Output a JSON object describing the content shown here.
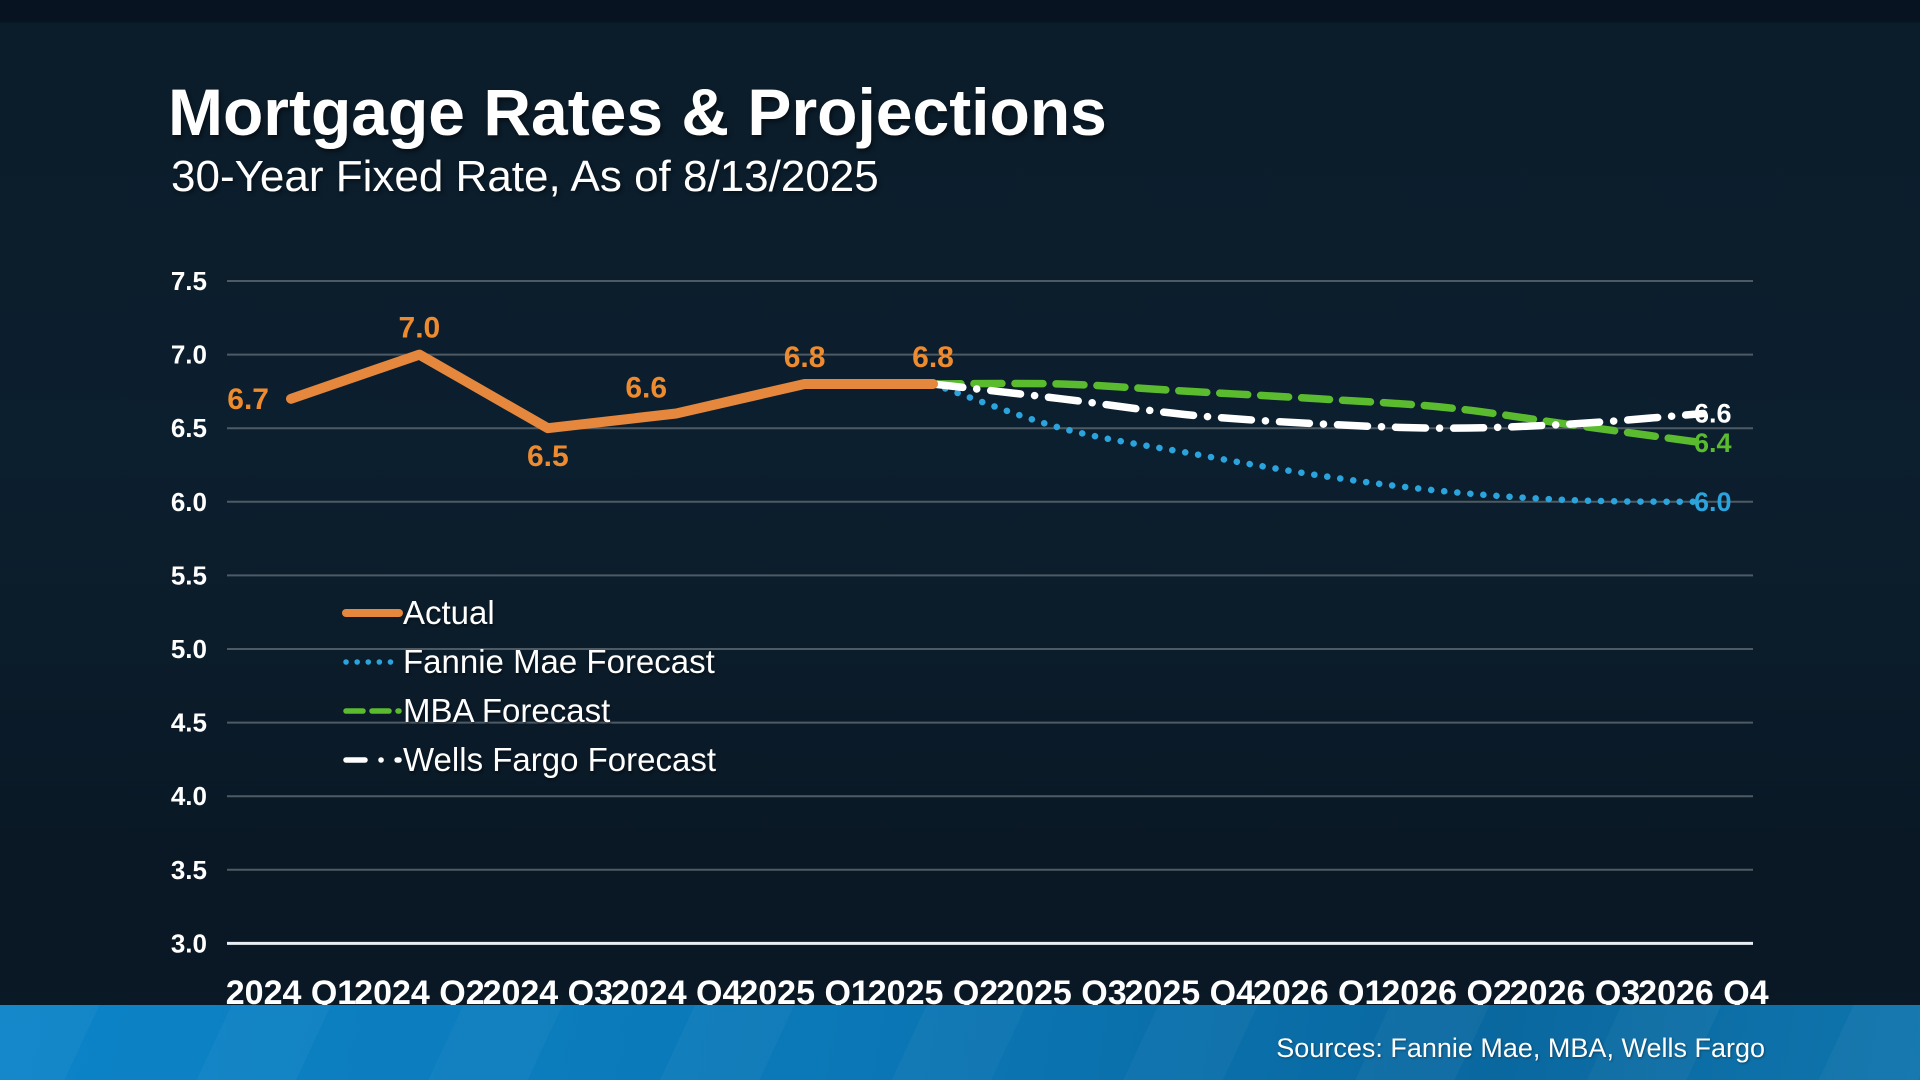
{
  "header": {
    "title": "Mortgage Rates & Projections",
    "subtitle": "30-Year Fixed Rate, As of 8/13/2025"
  },
  "footer": {
    "sources": "Sources: Fannie Mae, MBA, Wells Fargo",
    "bar_color_left": "#0C84C8",
    "bar_color_right": "#0A689F"
  },
  "colors": {
    "background": "#0B1C2A",
    "grid": "#4E5A64",
    "axis": "#E9EEF2",
    "text": "#FFFFFF"
  },
  "chart_data": {
    "type": "line",
    "title": "Mortgage Rates & Projections",
    "subtitle": "30-Year Fixed Rate, As of 8/13/2025",
    "categories": [
      "2024 Q1",
      "2024 Q2",
      "2024 Q3",
      "2024 Q4",
      "2025 Q1",
      "2025 Q2",
      "2025 Q3",
      "2025 Q4",
      "2026 Q1",
      "2026 Q2",
      "2026 Q3",
      "2026 Q4"
    ],
    "ylim": [
      3.0,
      7.5
    ],
    "ytick_step": 0.5,
    "grid": true,
    "legend_position": "middle-left",
    "series": [
      {
        "name": "Actual",
        "type": "solid",
        "color": "#E5873C",
        "label_color": "#EE8B2F",
        "values": [
          6.7,
          7.0,
          6.5,
          6.6,
          6.8,
          6.8,
          null,
          null,
          null,
          null,
          null,
          null
        ],
        "point_labels": [
          {
            "text": "6.7",
            "pos": "left"
          },
          {
            "text": "7.0",
            "pos": "above"
          },
          {
            "text": "6.5",
            "pos": "below"
          },
          {
            "text": "6.6",
            "pos": "above-left"
          },
          {
            "text": "6.8",
            "pos": "above"
          },
          {
            "text": "6.8",
            "pos": "above"
          }
        ]
      },
      {
        "name": "Fannie Mae Forecast",
        "type": "dotted",
        "color": "#2BA3DC",
        "values": [
          null,
          null,
          null,
          null,
          null,
          6.8,
          6.5,
          6.33,
          6.18,
          6.07,
          6.01,
          6.0
        ],
        "end_label": "6.0"
      },
      {
        "name": "MBA Forecast",
        "type": "dashed",
        "color": "#5ABB2F",
        "values": [
          null,
          null,
          null,
          null,
          null,
          6.8,
          6.8,
          6.75,
          6.7,
          6.64,
          6.52,
          6.4
        ],
        "end_label": "6.4"
      },
      {
        "name": "Wells Fargo Forecast",
        "type": "dashdot",
        "color": "#FFFFFF",
        "values": [
          null,
          null,
          null,
          null,
          null,
          6.8,
          6.7,
          6.59,
          6.53,
          6.5,
          6.53,
          6.6
        ],
        "end_label": "6.6"
      }
    ]
  }
}
